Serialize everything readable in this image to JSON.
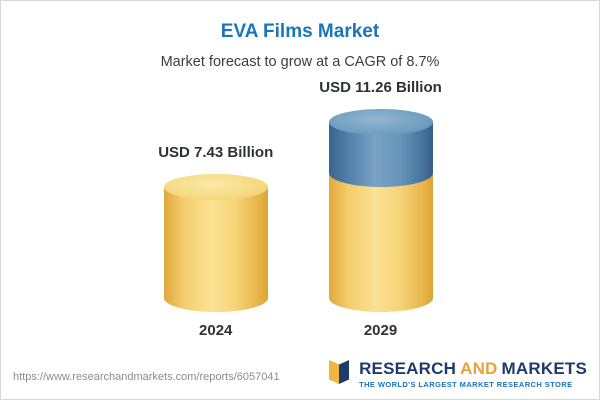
{
  "chart_data": {
    "type": "bar",
    "title": "EVA Films Market",
    "subtitle": "Market forecast to grow at a CAGR of 8.7%",
    "categories": [
      "2024",
      "2029"
    ],
    "values": [
      7.43,
      11.26
    ],
    "value_labels": [
      "USD 7.43 Billion",
      "USD 11.26 Billion"
    ],
    "unit": "USD Billion",
    "cagr_pct": 8.7,
    "ylim": [
      0,
      11.26
    ],
    "grid": false,
    "legend": "none",
    "colors": {
      "base_segment": "#F3CC6B",
      "growth_segment": "#5E8DB3",
      "title": "#1B75BC"
    },
    "notes": "3D cylinder pictograph; 2029 bar is stacked: yellow base equals 2024 value, blue top portion is growth to 2029"
  },
  "footer": {
    "url": "https://www.researchandmarkets.com/reports/6057041",
    "logo": {
      "research": "RESEARCH",
      "and": "AND",
      "markets": "MARKETS",
      "tagline": "THE WORLD'S LARGEST MARKET RESEARCH STORE"
    }
  }
}
